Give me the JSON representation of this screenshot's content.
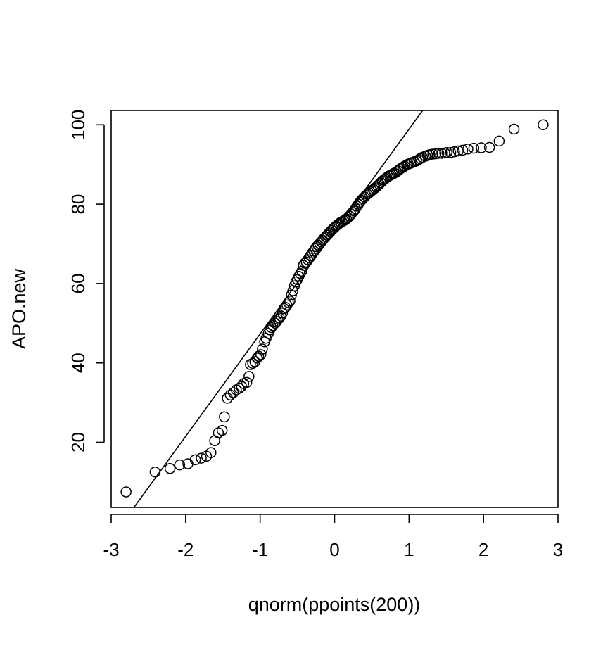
{
  "chart_data": {
    "type": "scatter",
    "title": "",
    "xlabel": "qnorm(ppoints(200))",
    "ylabel": "APO.new",
    "xlim": [
      -3.0,
      3.0
    ],
    "ylim": [
      3.6,
      103.6
    ],
    "x_ticks": [
      -3,
      -2,
      -1,
      0,
      1,
      2,
      3
    ],
    "x_tick_labels": [
      "-3",
      "-2",
      "-1",
      "0",
      "1",
      "2",
      "3"
    ],
    "y_ticks": [
      20,
      40,
      60,
      80,
      100
    ],
    "y_tick_labels": [
      "20",
      "40",
      "60",
      "80",
      "100"
    ],
    "grid": false,
    "legend": "none",
    "reference_line": {
      "intercept": 73.1,
      "slope": 25.8
    },
    "points": [
      [
        -2.8,
        7.5
      ],
      [
        -2.41,
        12.5
      ],
      [
        -2.21,
        13.4
      ],
      [
        -2.08,
        14.3
      ],
      [
        -1.97,
        14.6
      ],
      [
        -1.87,
        15.6
      ],
      [
        -1.79,
        16.0
      ],
      [
        -1.72,
        16.5
      ],
      [
        -1.66,
        17.4
      ],
      [
        -1.61,
        20.4
      ],
      [
        -1.56,
        22.4
      ],
      [
        -1.51,
        23.0
      ],
      [
        -1.48,
        26.4
      ],
      [
        -1.44,
        31.1
      ],
      [
        -1.4,
        31.9
      ],
      [
        -1.36,
        32.5
      ],
      [
        -1.32,
        33.2
      ],
      [
        -1.28,
        33.6
      ],
      [
        -1.25,
        34.1
      ],
      [
        -1.22,
        34.8
      ],
      [
        -1.18,
        35.1
      ],
      [
        -1.15,
        36.6
      ],
      [
        -1.13,
        39.6
      ],
      [
        -1.1,
        39.9
      ],
      [
        -1.07,
        40.3
      ],
      [
        -1.04,
        41.2
      ],
      [
        -1.02,
        41.7
      ],
      [
        -0.99,
        42.1
      ],
      [
        -0.97,
        43.5
      ],
      [
        -0.94,
        45.3
      ],
      [
        -0.92,
        46.2
      ],
      [
        -0.89,
        47.4
      ],
      [
        -0.87,
        48.3
      ],
      [
        -0.85,
        48.9
      ],
      [
        -0.83,
        49.4
      ],
      [
        -0.8,
        50.0
      ],
      [
        -0.78,
        50.4
      ],
      [
        -0.76,
        51.0
      ],
      [
        -0.74,
        51.3
      ],
      [
        -0.72,
        51.8
      ],
      [
        -0.7,
        52.6
      ],
      [
        -0.68,
        53.7
      ],
      [
        -0.66,
        54.0
      ],
      [
        -0.64,
        54.6
      ],
      [
        -0.62,
        55.2
      ],
      [
        -0.6,
        55.6
      ],
      [
        -0.58,
        57.1
      ],
      [
        -0.56,
        58.2
      ],
      [
        -0.54,
        59.4
      ],
      [
        -0.52,
        60.4
      ],
      [
        -0.5,
        61.0
      ],
      [
        -0.48,
        61.8
      ],
      [
        -0.46,
        62.5
      ],
      [
        -0.44,
        63.1
      ],
      [
        -0.42,
        64.6
      ],
      [
        -0.4,
        65.1
      ],
      [
        -0.38,
        65.4
      ],
      [
        -0.36,
        66.0
      ],
      [
        -0.34,
        66.5
      ],
      [
        -0.32,
        67.1
      ],
      [
        -0.3,
        67.7
      ],
      [
        -0.28,
        68.2
      ],
      [
        -0.26,
        68.8
      ],
      [
        -0.24,
        69.3
      ],
      [
        -0.22,
        69.7
      ],
      [
        -0.2,
        70.1
      ],
      [
        -0.18,
        70.5
      ],
      [
        -0.16,
        70.9
      ],
      [
        -0.14,
        71.4
      ],
      [
        -0.12,
        71.8
      ],
      [
        -0.1,
        72.2
      ],
      [
        -0.08,
        72.6
      ],
      [
        -0.06,
        73.0
      ],
      [
        -0.04,
        73.4
      ],
      [
        -0.02,
        73.8
      ],
      [
        0.0,
        74.1
      ],
      [
        0.02,
        74.5
      ],
      [
        0.04,
        74.8
      ],
      [
        0.06,
        75.1
      ],
      [
        0.08,
        75.4
      ],
      [
        0.1,
        75.6
      ],
      [
        0.12,
        75.8
      ],
      [
        0.14,
        76.0
      ],
      [
        0.16,
        76.3
      ],
      [
        0.18,
        76.6
      ],
      [
        0.2,
        77.0
      ],
      [
        0.22,
        77.4
      ],
      [
        0.24,
        77.9
      ],
      [
        0.26,
        78.3
      ],
      [
        0.28,
        78.8
      ],
      [
        0.3,
        79.5
      ],
      [
        0.32,
        80.0
      ],
      [
        0.34,
        80.5
      ],
      [
        0.36,
        81.0
      ],
      [
        0.38,
        81.4
      ],
      [
        0.4,
        81.8
      ],
      [
        0.42,
        82.2
      ],
      [
        0.44,
        82.5
      ],
      [
        0.46,
        82.8
      ],
      [
        0.48,
        83.1
      ],
      [
        0.5,
        83.4
      ],
      [
        0.52,
        83.7
      ],
      [
        0.54,
        84.0
      ],
      [
        0.56,
        84.3
      ],
      [
        0.58,
        84.7
      ],
      [
        0.6,
        85.0
      ],
      [
        0.62,
        85.4
      ],
      [
        0.64,
        85.8
      ],
      [
        0.66,
        86.1
      ],
      [
        0.68,
        86.4
      ],
      [
        0.7,
        86.7
      ],
      [
        0.72,
        87.0
      ],
      [
        0.74,
        87.2
      ],
      [
        0.76,
        87.4
      ],
      [
        0.78,
        87.6
      ],
      [
        0.8,
        87.8
      ],
      [
        0.83,
        88.1
      ],
      [
        0.85,
        88.4
      ],
      [
        0.87,
        88.7
      ],
      [
        0.89,
        89.0
      ],
      [
        0.92,
        89.3
      ],
      [
        0.94,
        89.6
      ],
      [
        0.97,
        89.9
      ],
      [
        0.99,
        90.1
      ],
      [
        1.02,
        90.3
      ],
      [
        1.04,
        90.5
      ],
      [
        1.07,
        90.7
      ],
      [
        1.1,
        90.9
      ],
      [
        1.13,
        91.2
      ],
      [
        1.15,
        91.5
      ],
      [
        1.18,
        91.8
      ],
      [
        1.22,
        92.1
      ],
      [
        1.25,
        92.3
      ],
      [
        1.28,
        92.5
      ],
      [
        1.32,
        92.6
      ],
      [
        1.36,
        92.7
      ],
      [
        1.4,
        92.8
      ],
      [
        1.44,
        92.8
      ],
      [
        1.48,
        92.9
      ],
      [
        1.51,
        93.0
      ],
      [
        1.56,
        93.0
      ],
      [
        1.61,
        93.2
      ],
      [
        1.66,
        93.4
      ],
      [
        1.72,
        93.6
      ],
      [
        1.79,
        93.9
      ],
      [
        1.87,
        94.1
      ],
      [
        1.97,
        94.2
      ],
      [
        2.08,
        94.3
      ],
      [
        2.21,
        95.9
      ],
      [
        2.41,
        98.9
      ],
      [
        2.8,
        100.0
      ]
    ]
  }
}
